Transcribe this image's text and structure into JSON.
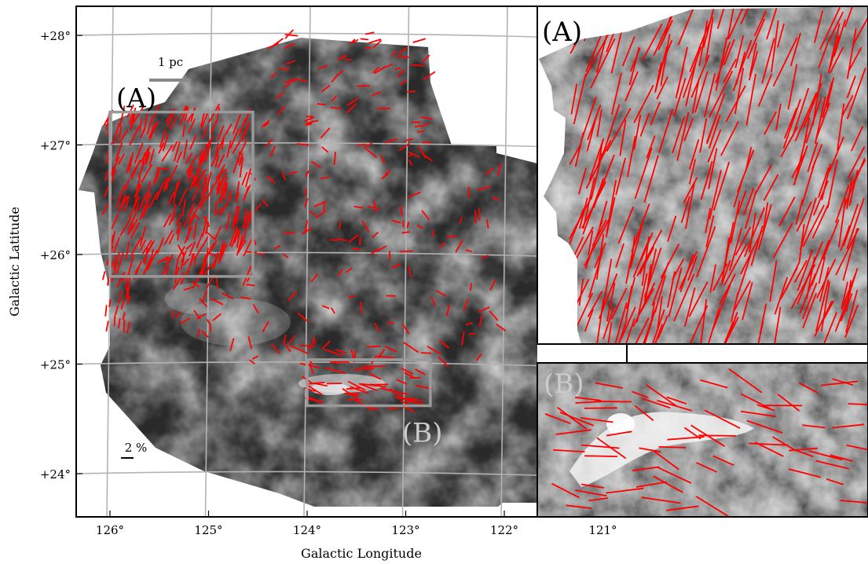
{
  "chart_data": {
    "type": "scatter",
    "xlabel": "Galactic Longitude",
    "ylabel": "Galactic Latitude",
    "x_ticks": [
      126,
      125,
      124,
      123,
      122,
      121
    ],
    "x_tick_labels": [
      "126°",
      "125°",
      "124°",
      "123°",
      "122°",
      "121°"
    ],
    "y_ticks": [
      28,
      27,
      26,
      25,
      24
    ],
    "y_tick_labels": [
      "+28°",
      "+27°",
      "+26°",
      "+25°",
      "+24°"
    ],
    "xlim": [
      126.3,
      120.0
    ],
    "ylim": [
      23.55,
      28.25
    ],
    "grid": true,
    "background": "grayscale dust emission map",
    "vector_color": "#ff0000",
    "scale_bars": {
      "length_label": "1 pc",
      "polarization_label": "2 %"
    },
    "regions": [
      {
        "label": "(A)",
        "l_range": [
          126.0,
          124.55
        ],
        "b_range": [
          25.8,
          27.3
        ]
      },
      {
        "label": "(B)",
        "l_range": [
          124.0,
          122.75
        ],
        "b_range": [
          24.62,
          25.04
        ]
      }
    ],
    "insets": [
      {
        "label": "(A)",
        "shows_region": "(A)"
      },
      {
        "label": "(B)",
        "shows_region": "(B)"
      }
    ]
  }
}
